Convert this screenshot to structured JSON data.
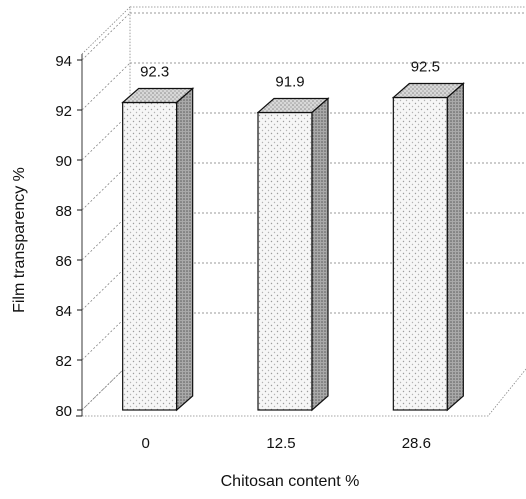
{
  "chart_data": {
    "type": "bar",
    "title": "",
    "xlabel": "Chitosan content %",
    "ylabel": "Film transparency %",
    "categories": [
      "0",
      "12.5",
      "28.6"
    ],
    "values": [
      92.3,
      91.9,
      92.5
    ],
    "data_labels": [
      "92.3",
      "91.9",
      "92.5"
    ],
    "ylim": [
      80,
      94
    ],
    "yticks": [
      80,
      82,
      84,
      86,
      88,
      90,
      92,
      94
    ],
    "ytick_labels": [
      "80",
      "82",
      "84",
      "86",
      "88",
      "90",
      "92",
      "94"
    ],
    "grid": true,
    "style": "3d",
    "legend": "none"
  },
  "colors": {
    "bar_front": "#f4f4f4",
    "bar_top": "#cfcfcf",
    "bar_side": "#9a9a9a",
    "outline": "#111111",
    "grid": "#777777"
  }
}
